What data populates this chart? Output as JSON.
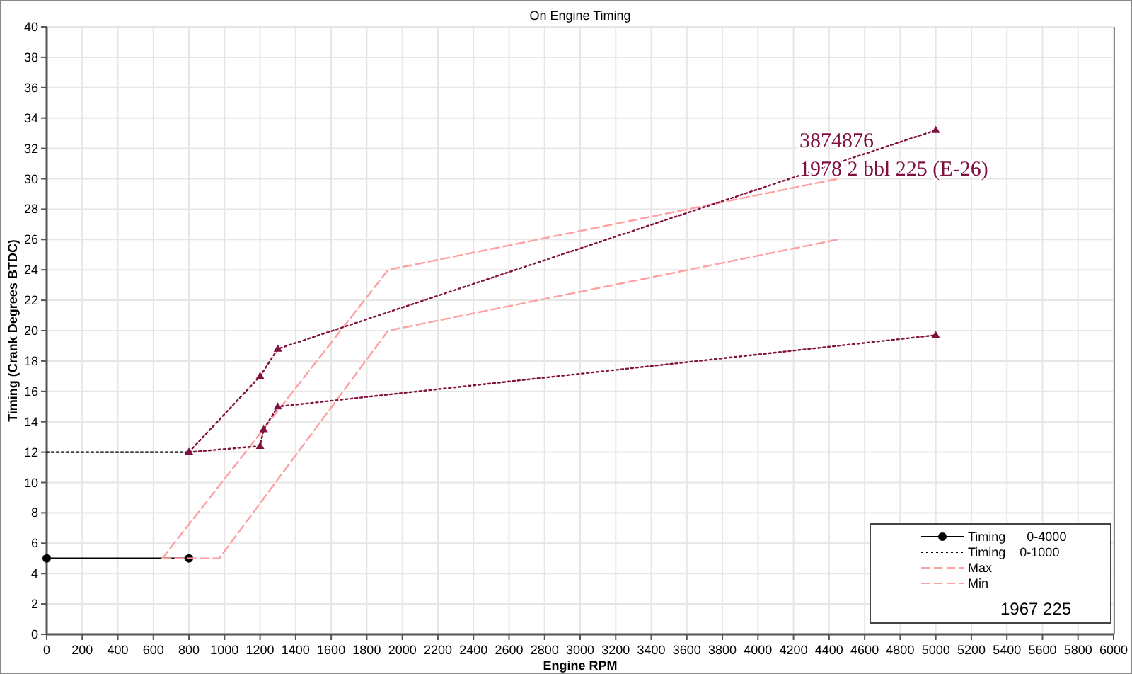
{
  "chart_data": {
    "type": "line",
    "title": "On Engine Timing",
    "xlabel": "Engine RPM",
    "ylabel": "Timing (Crank Degrees BTDC)",
    "xlim": [
      0,
      6000
    ],
    "xticks": [
      0,
      200,
      400,
      600,
      800,
      1000,
      1200,
      1400,
      1600,
      1800,
      2000,
      2200,
      2400,
      2600,
      2800,
      3000,
      3200,
      3400,
      3600,
      3800,
      4000,
      4200,
      4400,
      4600,
      4800,
      5000,
      5200,
      5400,
      5600,
      5800,
      6000
    ],
    "ylim": [
      0,
      40
    ],
    "yticks": [
      0,
      2,
      4,
      6,
      8,
      10,
      12,
      14,
      16,
      18,
      20,
      22,
      24,
      26,
      28,
      30,
      32,
      34,
      36,
      38,
      40
    ],
    "grid": true,
    "legend": "bottom right",
    "series": [
      {
        "name": "Timing      0-4000",
        "color": "#000000",
        "x": [
          0,
          800
        ],
        "values": [
          5,
          5
        ],
        "marker": "circle",
        "line_style": "solid"
      },
      {
        "name": "Timing    0-1000",
        "color": "#000000",
        "x": [
          0,
          800
        ],
        "values": [
          12,
          12
        ],
        "marker": "none",
        "line_style": "dotted"
      },
      {
        "name": "Max",
        "color": "#ff9f9f",
        "x": [
          650,
          1920,
          4450
        ],
        "values": [
          5,
          24,
          30
        ],
        "marker": "none",
        "line_style": "dashed"
      },
      {
        "name": "Min",
        "color": "#ff9f9f",
        "x": [
          650,
          970,
          1920,
          4450
        ],
        "values": [
          5,
          5,
          20,
          26
        ],
        "marker": "none",
        "line_style": "dashed"
      },
      {
        "color": "#80103f",
        "x": [
          800,
          1200,
          1300,
          5000
        ],
        "values": [
          12,
          17,
          18.8,
          33.2
        ],
        "marker": "triangle",
        "line_style": "dotted"
      },
      {
        "color": "#80103f",
        "x": [
          800,
          1200,
          1220,
          1300,
          5000
        ],
        "values": [
          12,
          12.4,
          13.5,
          15,
          19.7
        ],
        "marker": "triangle",
        "line_style": "dotted"
      }
    ],
    "annotations": [
      "3874876",
      "1978 2 bbl 225 (E-26)",
      "1967 225"
    ]
  }
}
